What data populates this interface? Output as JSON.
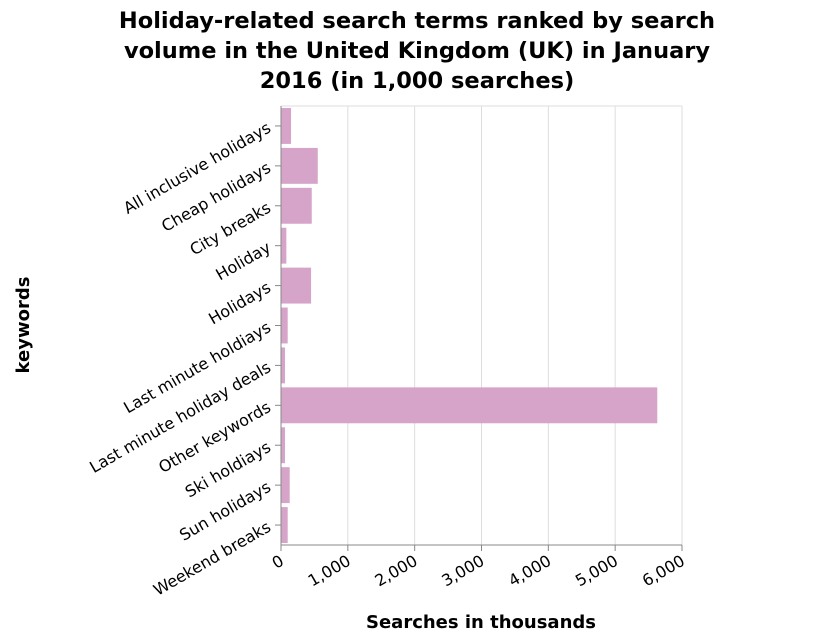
{
  "chart_data": {
    "type": "bar",
    "orientation": "horizontal",
    "title_lines": [
      "Holiday-related search terms ranked by search",
      "volume in the United Kingdom (UK) in January",
      "2016 (in 1,000 searches)"
    ],
    "xlabel": "Searches in thousands",
    "ylabel": "keywords",
    "xlim": [
      0,
      6000
    ],
    "x_ticks": [
      0,
      1000,
      2000,
      3000,
      4000,
      5000,
      6000
    ],
    "x_tick_labels": [
      "0",
      "1,000",
      "2,000",
      "3,000",
      "4,000",
      "5,000",
      "6,000"
    ],
    "categories": [
      "All inclusive holidays",
      "Cheap holidays",
      "City breaks",
      "Holiday",
      "Holidays",
      "Last minute holdiays",
      "Last minute holiday deals",
      "Other keywords",
      "Ski holdiays",
      "Sun holidays",
      "Weekend breaks"
    ],
    "values": [
      150,
      550,
      460,
      80,
      450,
      100,
      60,
      5630,
      60,
      130,
      100
    ],
    "bar_color": "#d6a4c8",
    "grid": "vertical",
    "legend": "none"
  }
}
